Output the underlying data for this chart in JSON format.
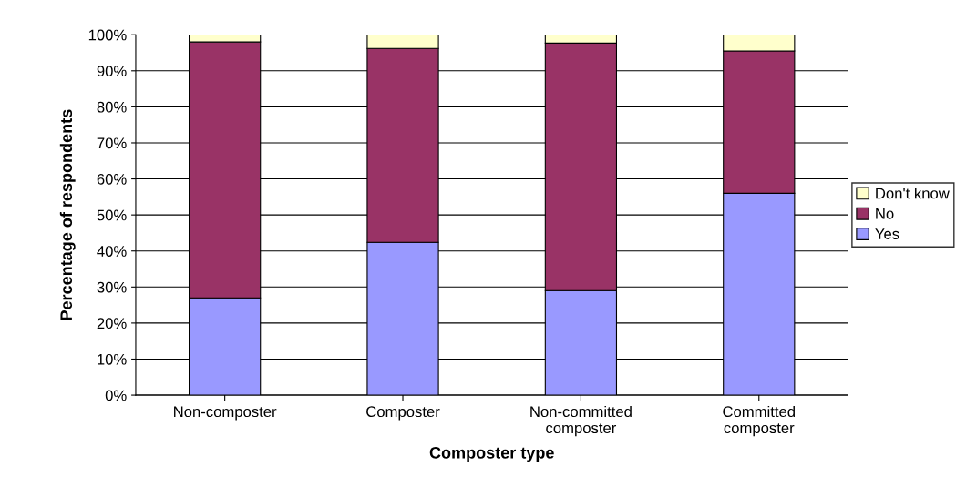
{
  "chart_data": {
    "type": "bar",
    "stacked": true,
    "xlabel": "Composter type",
    "ylabel": "Percentage of respondents",
    "categories": [
      "Non-composter",
      "Composter",
      "Non-committed\ncomposter",
      "Committed\ncomposter"
    ],
    "series": [
      {
        "name": "Yes",
        "color": "#9999ff",
        "values": [
          27,
          42.4,
          29,
          56
        ]
      },
      {
        "name": "No",
        "color": "#993366",
        "values": [
          71,
          53.8,
          68.7,
          39.5
        ]
      },
      {
        "name": "Don't know",
        "color": "#ffffcc",
        "values": [
          2,
          3.8,
          2.3,
          4.5
        ]
      }
    ],
    "ylim": [
      0,
      100
    ],
    "yticks": [
      {
        "value": 0,
        "label": "0%"
      },
      {
        "value": 10,
        "label": "10%"
      },
      {
        "value": 20,
        "label": "20%"
      },
      {
        "value": 30,
        "label": "30%"
      },
      {
        "value": 40,
        "label": "40%"
      },
      {
        "value": 50,
        "label": "50%"
      },
      {
        "value": 60,
        "label": "60%"
      },
      {
        "value": 70,
        "label": "70%"
      },
      {
        "value": 80,
        "label": "80%"
      },
      {
        "value": 90,
        "label": "90%"
      },
      {
        "value": 100,
        "label": "100%"
      }
    ],
    "grid": "y",
    "legend": "right"
  }
}
